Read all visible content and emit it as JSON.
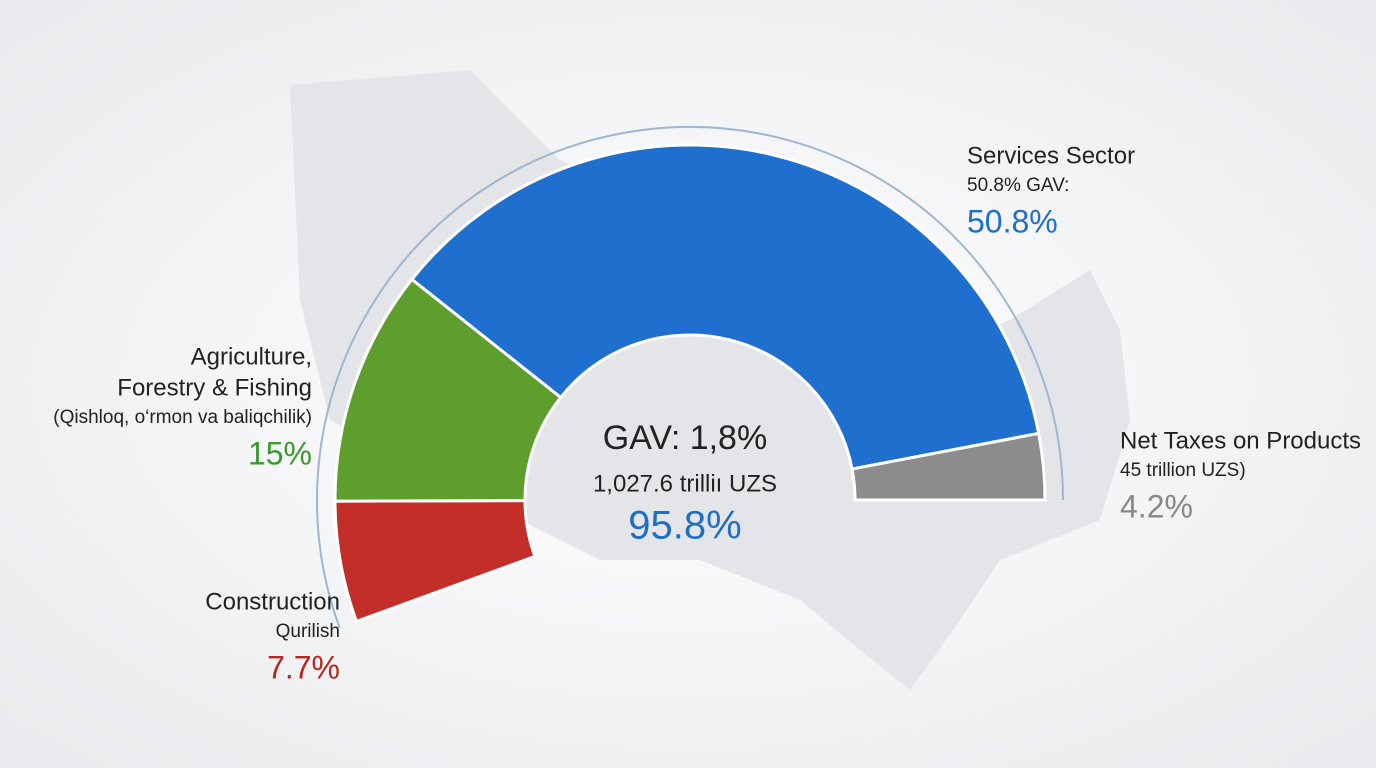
{
  "chart_data": {
    "type": "donut",
    "segments": [
      {
        "label_lines": [
          "Construction"
        ],
        "subtitle": "Qurilish",
        "value": 7.7,
        "value_label": "7.7%",
        "color": "#c42e28"
      },
      {
        "label_lines": [
          "Agriculture,",
          "Forestry & Fishing"
        ],
        "subtitle": "(Qishloq, o‘rmon va baliqchilik)",
        "value": 15,
        "value_label": "15%",
        "color": "#5d9e2c"
      },
      {
        "label_lines": [
          "Services Sector"
        ],
        "subtitle": "50.8% GAV:",
        "value": 50.8,
        "value_label": "50.8%",
        "color": "#1f6fcf"
      },
      {
        "label_lines": [
          "Net Taxes on Products"
        ],
        "subtitle": "45 trillion UZS)",
        "value": 4.2,
        "value_label": "4.2%",
        "color": "#8c8c8c"
      }
    ],
    "center": {
      "title": "GAV: 1,8%",
      "subtitle": "1,027.6 trilliı UZS",
      "value_label": "95.8%"
    }
  }
}
